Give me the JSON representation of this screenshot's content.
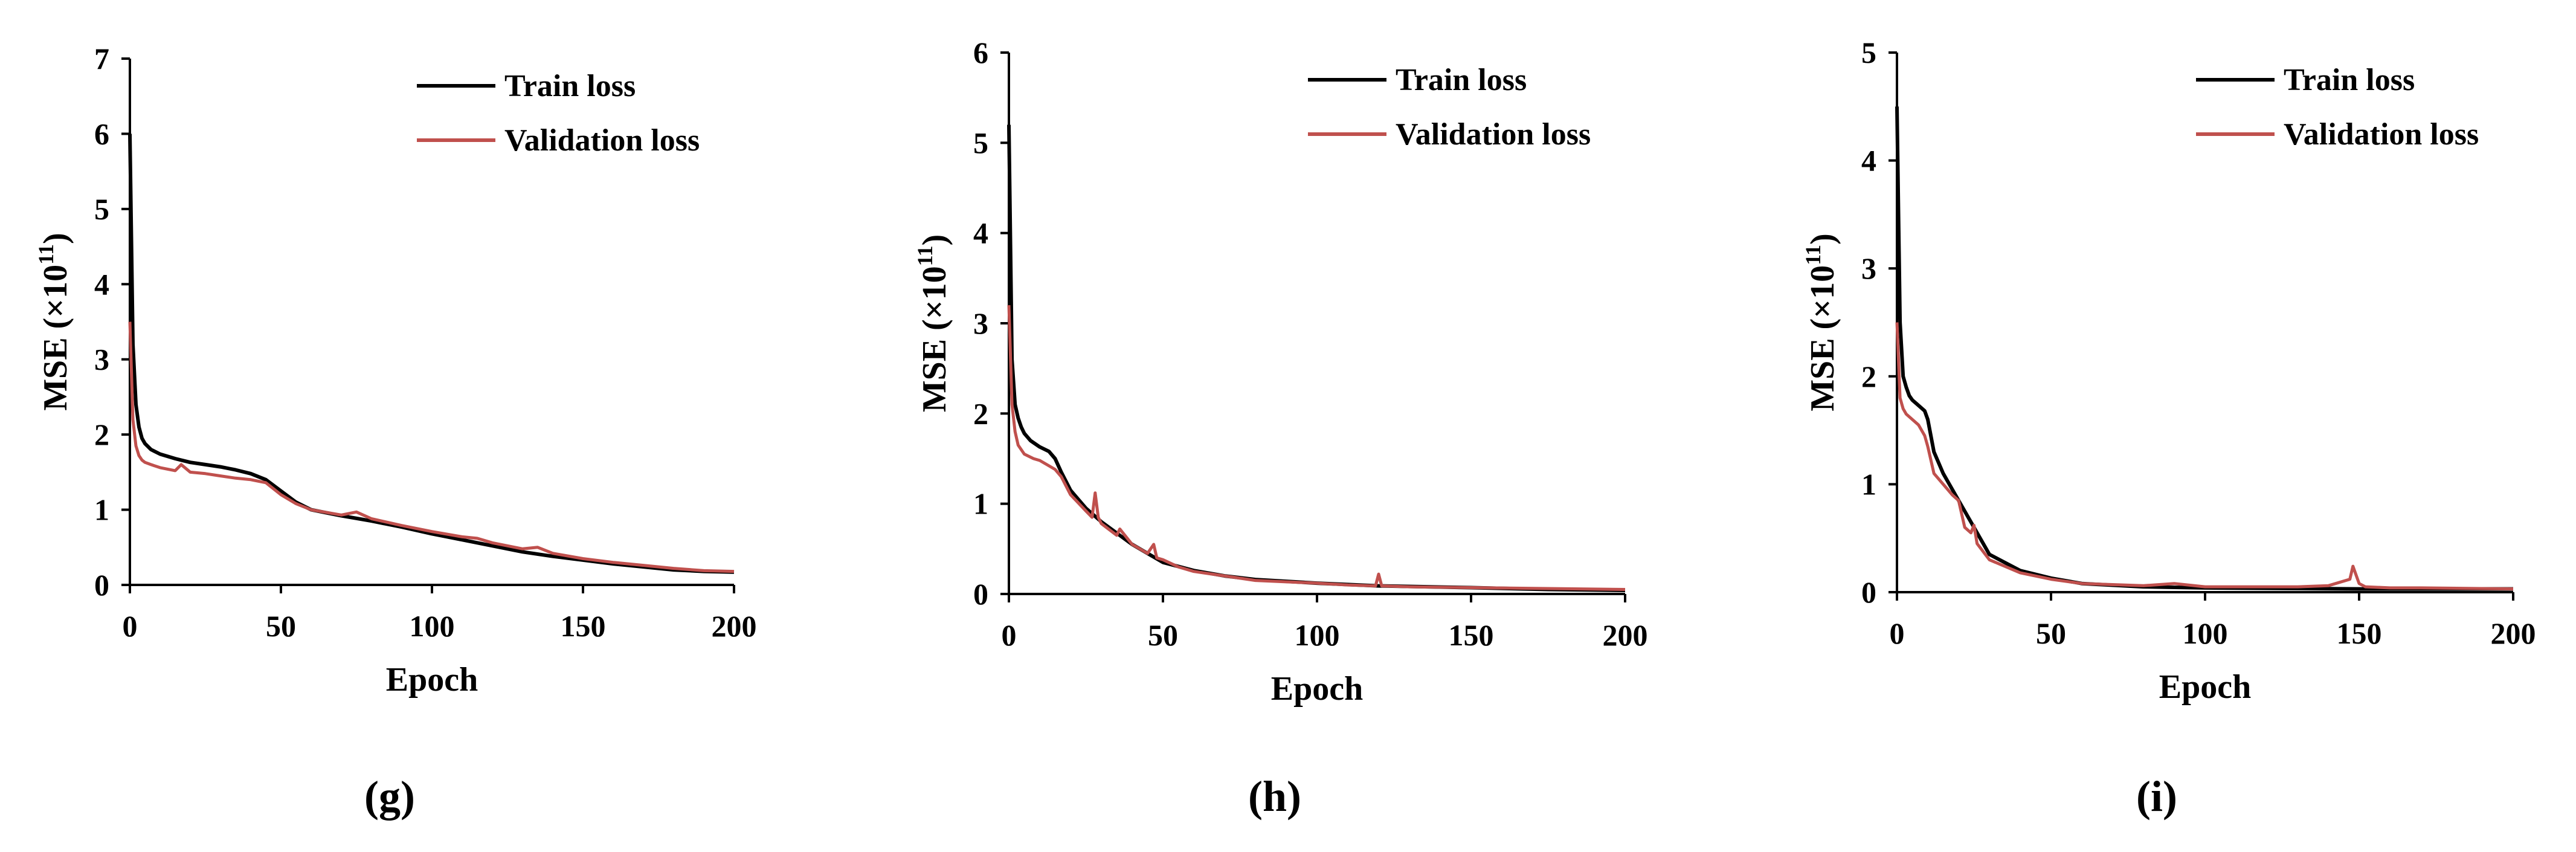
{
  "figure": {
    "legend_train": "Train loss",
    "legend_validation": "Validation loss",
    "colors": {
      "train": "#000000",
      "validation": "#c0504d",
      "axis": "#000000"
    }
  },
  "chart_data": [
    {
      "type": "line",
      "panel_label": "(g)",
      "xlabel": "Epoch",
      "ylabel_main": "MSE (×10",
      "ylabel_sup": "11",
      "ylabel_close": ")",
      "xlim": [
        0,
        200
      ],
      "ylim": [
        0,
        7
      ],
      "xticks": [
        0,
        50,
        100,
        150,
        200
      ],
      "yticks": [
        0,
        1,
        2,
        3,
        4,
        5,
        6,
        7
      ],
      "legend_position": "top-right",
      "series": [
        {
          "name": "Train loss",
          "key": "train",
          "x": [
            0,
            1,
            2,
            3,
            4,
            5,
            7,
            10,
            15,
            20,
            25,
            30,
            35,
            40,
            45,
            50,
            55,
            60,
            70,
            80,
            90,
            100,
            110,
            120,
            130,
            140,
            150,
            160,
            170,
            180,
            190,
            200
          ],
          "y": [
            6.0,
            3.2,
            2.4,
            2.1,
            1.95,
            1.88,
            1.8,
            1.74,
            1.68,
            1.63,
            1.6,
            1.57,
            1.53,
            1.48,
            1.4,
            1.25,
            1.1,
            1.0,
            0.92,
            0.85,
            0.77,
            0.68,
            0.6,
            0.52,
            0.44,
            0.38,
            0.33,
            0.28,
            0.24,
            0.2,
            0.18,
            0.17
          ]
        },
        {
          "name": "Validation loss",
          "key": "validation",
          "x": [
            0,
            1,
            2,
            3,
            4,
            5,
            7,
            10,
            15,
            17,
            20,
            25,
            30,
            35,
            40,
            45,
            50,
            55,
            60,
            70,
            75,
            80,
            90,
            100,
            110,
            115,
            120,
            130,
            135,
            140,
            150,
            160,
            170,
            180,
            190,
            200
          ],
          "y": [
            3.5,
            2.2,
            1.85,
            1.72,
            1.66,
            1.63,
            1.6,
            1.56,
            1.52,
            1.6,
            1.5,
            1.48,
            1.45,
            1.42,
            1.4,
            1.36,
            1.2,
            1.08,
            1.0,
            0.93,
            0.97,
            0.88,
            0.79,
            0.71,
            0.64,
            0.62,
            0.56,
            0.48,
            0.5,
            0.42,
            0.35,
            0.3,
            0.26,
            0.22,
            0.19,
            0.18
          ]
        }
      ]
    },
    {
      "type": "line",
      "panel_label": "(h)",
      "xlabel": "Epoch",
      "ylabel_main": "MSE (×10",
      "ylabel_sup": "11",
      "ylabel_close": ")",
      "xlim": [
        0,
        200
      ],
      "ylim": [
        0,
        6
      ],
      "xticks": [
        0,
        50,
        100,
        150,
        200
      ],
      "yticks": [
        0,
        1,
        2,
        3,
        4,
        5,
        6
      ],
      "legend_position": "top-right",
      "series": [
        {
          "name": "Train loss",
          "key": "train",
          "x": [
            0,
            1,
            2,
            3,
            4,
            5,
            7,
            10,
            13,
            15,
            17,
            20,
            25,
            30,
            40,
            50,
            60,
            70,
            80,
            100,
            120,
            150,
            175,
            200
          ],
          "y": [
            5.2,
            2.6,
            2.1,
            1.95,
            1.85,
            1.78,
            1.7,
            1.63,
            1.58,
            1.5,
            1.35,
            1.15,
            0.95,
            0.8,
            0.55,
            0.35,
            0.26,
            0.2,
            0.16,
            0.12,
            0.09,
            0.07,
            0.05,
            0.04
          ]
        },
        {
          "name": "Validation loss",
          "key": "validation",
          "x": [
            0,
            1,
            2,
            3,
            5,
            8,
            10,
            13,
            15,
            17,
            20,
            25,
            27,
            28,
            29,
            30,
            35,
            36,
            40,
            45,
            47,
            48,
            50,
            55,
            60,
            70,
            80,
            100,
            110,
            119,
            120,
            121,
            130,
            150,
            175,
            200
          ],
          "y": [
            3.2,
            2.1,
            1.8,
            1.65,
            1.55,
            1.5,
            1.48,
            1.42,
            1.38,
            1.3,
            1.1,
            0.92,
            0.85,
            1.12,
            0.85,
            0.78,
            0.65,
            0.72,
            0.55,
            0.45,
            0.55,
            0.4,
            0.38,
            0.3,
            0.25,
            0.2,
            0.15,
            0.12,
            0.1,
            0.09,
            0.22,
            0.09,
            0.08,
            0.07,
            0.06,
            0.05
          ]
        }
      ]
    },
    {
      "type": "line",
      "panel_label": "(i)",
      "xlabel": "Epoch",
      "ylabel_main": "MSE (×10",
      "ylabel_sup": "11",
      "ylabel_close": ")",
      "xlim": [
        0,
        200
      ],
      "ylim": [
        0,
        5
      ],
      "xticks": [
        0,
        50,
        100,
        150,
        200
      ],
      "yticks": [
        0,
        1,
        2,
        3,
        4,
        5
      ],
      "legend_position": "top-right",
      "series": [
        {
          "name": "Train loss",
          "key": "train",
          "x": [
            0,
            1,
            2,
            3,
            4,
            5,
            7,
            9,
            10,
            12,
            15,
            18,
            20,
            25,
            30,
            40,
            50,
            60,
            80,
            100,
            150,
            200
          ],
          "y": [
            4.5,
            2.5,
            2.0,
            1.9,
            1.82,
            1.78,
            1.73,
            1.68,
            1.6,
            1.3,
            1.1,
            0.95,
            0.85,
            0.6,
            0.35,
            0.2,
            0.13,
            0.08,
            0.05,
            0.04,
            0.03,
            0.03
          ]
        },
        {
          "name": "Validation loss",
          "key": "validation",
          "x": [
            0,
            1,
            2,
            3,
            5,
            7,
            9,
            10,
            12,
            15,
            18,
            20,
            22,
            24,
            25,
            26,
            30,
            40,
            50,
            60,
            80,
            90,
            100,
            130,
            140,
            147,
            148,
            150,
            152,
            160,
            170,
            200
          ],
          "y": [
            2.5,
            1.8,
            1.7,
            1.65,
            1.6,
            1.55,
            1.45,
            1.35,
            1.1,
            1.0,
            0.9,
            0.85,
            0.6,
            0.55,
            0.62,
            0.45,
            0.3,
            0.18,
            0.12,
            0.08,
            0.06,
            0.08,
            0.05,
            0.05,
            0.06,
            0.12,
            0.24,
            0.08,
            0.05,
            0.04,
            0.04,
            0.03
          ]
        }
      ]
    }
  ]
}
